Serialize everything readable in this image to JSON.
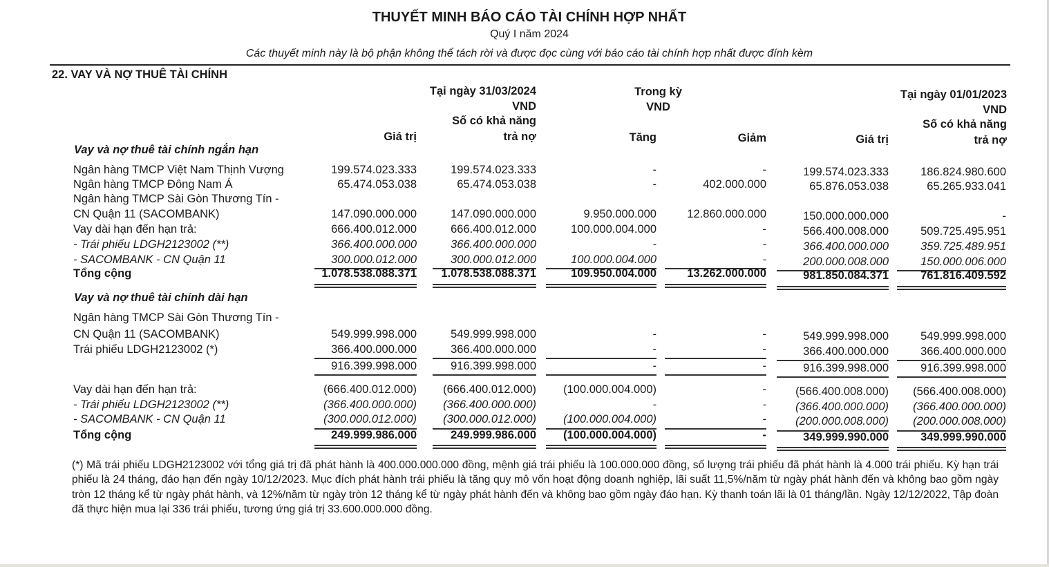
{
  "header": {
    "title": "THUYẾT MINH BÁO CÁO TÀI CHÍNH HỢP NHẤT",
    "period": "Quý I năm 2024",
    "note": "Các thuyết minh này là bộ phận không thể tách rời và được đọc cùng với báo cáo tài chính hợp nhất được đính kèm"
  },
  "section_title": "22. VAY VÀ NỢ THUÊ TÀI CHÍNH",
  "columns": {
    "end_date": "Tại ngày 31/03/2024",
    "end_currency": "VND",
    "in_period": "Trong kỳ",
    "in_period_currency": "VND",
    "start_date": "Tại ngày 01/01/2023",
    "start_currency": "VND",
    "value": "Giá trị",
    "repayable_1": "Số có khả năng",
    "repayable_2": "trả nợ",
    "increase": "Tăng",
    "decrease": "Giảm"
  },
  "short_term": {
    "title": "Vay và nợ thuê tài chính ngắn hạn",
    "rows": [
      {
        "label": "Ngân hàng TMCP Việt Nam Thịnh Vượng",
        "values": [
          "199.574.023.333",
          "199.574.023.333",
          "-",
          "-",
          "199.574.023.333",
          "186.824.980.600"
        ]
      },
      {
        "label": "Ngân hàng TMCP Đông Nam Á",
        "values": [
          "65.474.053.038",
          "65.474.053.038",
          "-",
          "402.000.000",
          "65.876.053.038",
          "65.265.933.041"
        ]
      },
      {
        "label": "Ngân hàng TMCP Sài Gòn Thương Tín -",
        "values": [
          "",
          "",
          "",
          "",
          "",
          ""
        ]
      },
      {
        "label": "CN Quận 11 (SACOMBANK)",
        "values": [
          "147.090.000.000",
          "147.090.000.000",
          "9.950.000.000",
          "12.860.000.000",
          "150.000.000.000",
          "-"
        ]
      },
      {
        "label": "Vay dài hạn đến hạn trả:",
        "values": [
          "666.400.012.000",
          "666.400.012.000",
          "100.000.004.000",
          "-",
          "566.400.008.000",
          "509.725.495.951"
        ]
      },
      {
        "label": "- Trái phiếu LDGH2123002 (**)",
        "values": [
          "366.400.000.000",
          "366.400.000.000",
          "-",
          "-",
          "366.400.000.000",
          "359.725.489.951"
        ]
      },
      {
        "label": "- SACOMBANK - CN Quận 11",
        "values": [
          "300.000.012.000",
          "300.000.012.000",
          "100.000.004.000",
          "-",
          "200.000.008.000",
          "150.000.006.000"
        ]
      },
      {
        "label": "Tổng cộng",
        "values": [
          "1.078.538.088.371",
          "1.078.538.088.371",
          "109.950.004.000",
          "13.262.000.000",
          "981.850.084.371",
          "761.816.409.592"
        ]
      }
    ]
  },
  "long_term": {
    "title": "Vay và nợ thuê tài chính dài hạn",
    "rows": [
      {
        "label": "Ngân hàng TMCP Sài Gòn Thương Tín -",
        "values": [
          "",
          "",
          "",
          "",
          "",
          ""
        ]
      },
      {
        "label": "CN Quận 11 (SACOMBANK)",
        "values": [
          "549.999.998.000",
          "549.999.998.000",
          "-",
          "-",
          "549.999.998.000",
          "549.999.998.000"
        ]
      },
      {
        "label": "Trái phiếu LDGH2123002 (*)",
        "values": [
          "366.400.000.000",
          "366.400.000.000",
          "-",
          "-",
          "366.400.000.000",
          "366.400.000.000"
        ]
      },
      {
        "label": "",
        "values": [
          "916.399.998.000",
          "916.399.998.000",
          "-",
          "-",
          "916.399.998.000",
          "916.399.998.000"
        ]
      },
      {
        "label": "Vay dài hạn đến hạn trả:",
        "values": [
          "(666.400.012.000)",
          "(666.400.012.000)",
          "(100.000.004.000)",
          "-",
          "(566.400.008.000)",
          "(566.400.008.000)"
        ]
      },
      {
        "label": "- Trái phiếu LDGH2123002 (**)",
        "values": [
          "(366.400.000.000)",
          "(366.400.000.000)",
          "-",
          "-",
          "(366.400.000.000)",
          "(366.400.000.000)"
        ]
      },
      {
        "label": "- SACOMBANK - CN Quận 11",
        "values": [
          "(300.000.012.000)",
          "(300.000.012.000)",
          "(100.000.004.000)",
          "-",
          "(200.000.008.000)",
          "(200.000.008.000)"
        ]
      },
      {
        "label": "Tổng cộng",
        "values": [
          "249.999.986.000",
          "249.999.986.000",
          "(100.000.004.000)",
          "-",
          "349.999.990.000",
          "349.999.990.000"
        ]
      }
    ]
  },
  "footnote": "(*) Mã trái phiếu LDGH2123002 với tổng giá trị đã phát hành là 400.000.000.000 đồng, mệnh giá trái phiếu là 100.000.000 đồng, số lượng trái phiếu đã phát hành là 4.000 trái phiếu. Kỳ hạn trái phiếu là 24 tháng, đáo hạn đến ngày 10/12/2023. Mục đích phát hành trái phiếu là tăng quy mô vốn hoạt động doanh nghiệp, lãi suất 11,5%/năm từ ngày phát hành đến và không bao gồm ngày tròn 12 tháng kể từ ngày phát hành, và 12%/năm từ ngày tròn 12 tháng kể từ ngày phát hành đến và không bao gồm ngày đáo hạn. Kỳ thanh toán lãi là 01 tháng/lần. Ngày 12/12/2022, Tập đoàn đã thực hiện mua lại 336 trái phiếu, tương ứng giá trị 33.600.000.000 đồng."
}
